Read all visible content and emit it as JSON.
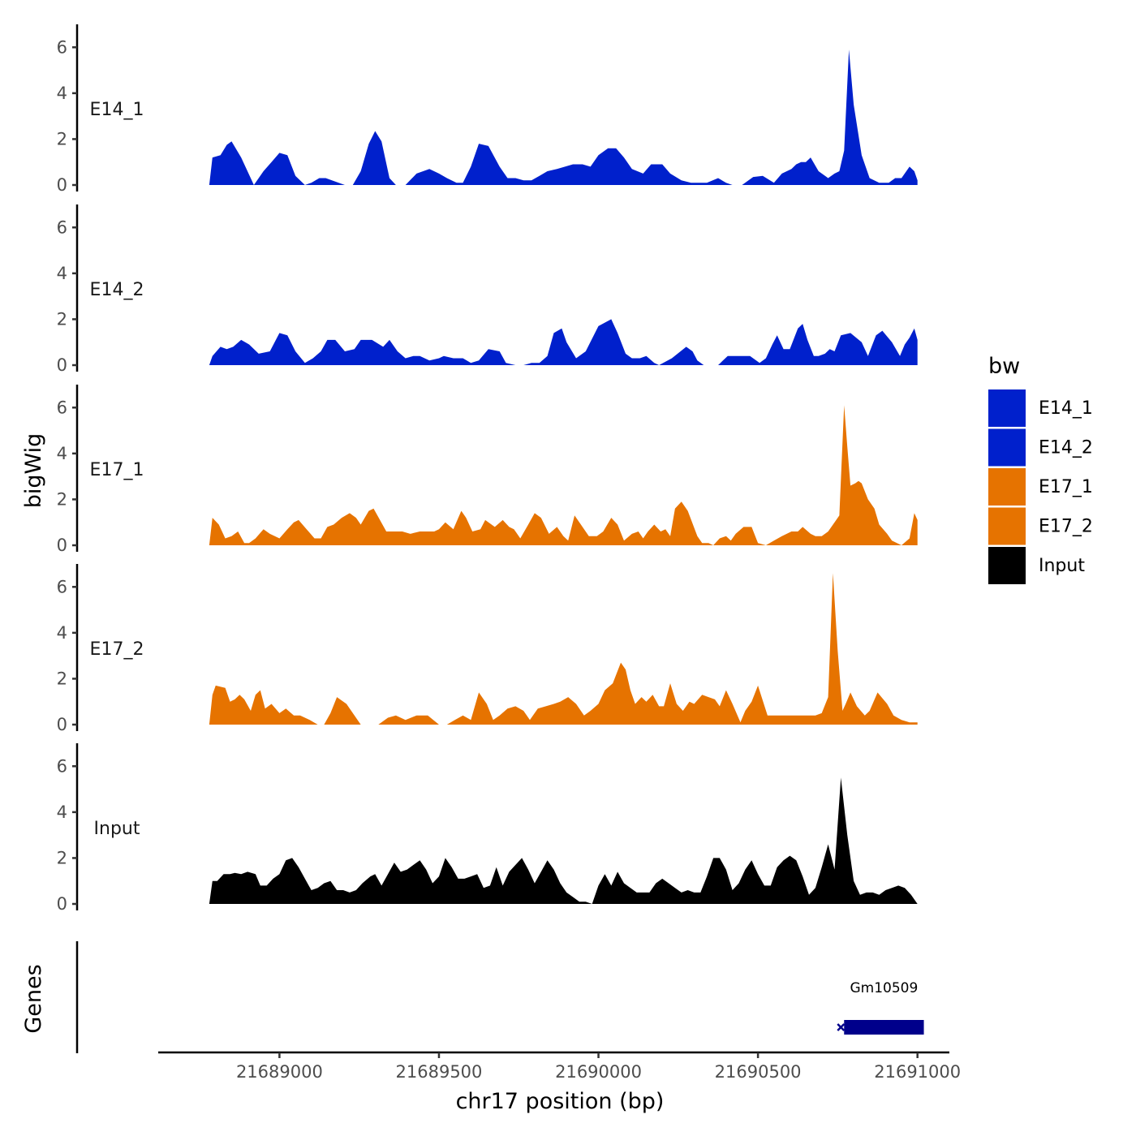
{
  "chart_data": {
    "type": "area",
    "title": "",
    "xlabel": "chr17 position (bp)",
    "ylabel": "bigWig",
    "genes_ylabel": "Genes",
    "xlim": [
      21688620,
      21691100
    ],
    "ylim": [
      0,
      7
    ],
    "x_ticks": [
      21689000,
      21689500,
      21690000,
      21690500,
      21691000
    ],
    "x_tick_labels": [
      "21689000",
      "21689500",
      "21690000",
      "21690500",
      "21691000"
    ],
    "y_ticks": [
      0,
      2,
      4,
      6
    ],
    "y_tick_labels": [
      "0",
      "2",
      "4",
      "6"
    ],
    "legend": {
      "title": "bw",
      "position": "right",
      "entries": [
        {
          "label": "E14_1",
          "color": "#0020CC"
        },
        {
          "label": "E14_2",
          "color": "#0020CC"
        },
        {
          "label": "E17_1",
          "color": "#E67300"
        },
        {
          "label": "E17_2",
          "color": "#E67300"
        },
        {
          "label": "Input",
          "color": "#000000"
        }
      ]
    },
    "series": [
      {
        "name": "E14_1",
        "color": "#0020CC",
        "x": [
          21688780,
          21688790,
          21688815,
          21688835,
          21688850,
          21688880,
          21688920,
          21688950,
          21688975,
          21689000,
          21689025,
          21689050,
          21689080,
          21689100,
          21689125,
          21689145,
          21689175,
          21689205,
          21689230,
          21689255,
          21689280,
          21689300,
          21689320,
          21689345,
          21689365,
          21689395,
          21689430,
          21689470,
          21689500,
          21689525,
          21689555,
          21689575,
          21689600,
          21689625,
          21689655,
          21689690,
          21689715,
          21689740,
          21689765,
          21689790,
          21689815,
          21689840,
          21689870,
          21689895,
          21689920,
          21689950,
          21689975,
          21690000,
          21690030,
          21690055,
          21690080,
          21690105,
          21690140,
          21690165,
          21690200,
          21690225,
          21690260,
          21690290,
          21690340,
          21690375,
          21690400,
          21690420,
          21690450,
          21690485,
          21690515,
          21690550,
          21690575,
          21690605,
          21690620,
          21690635,
          21690650,
          21690665,
          21690690,
          21690720,
          21690740,
          21690755,
          21690770,
          21690785,
          21690800,
          21690825,
          21690850,
          21690880,
          21690910,
          21690930,
          21690950,
          21690975,
          21690990,
          21691000
        ],
        "y": [
          0,
          1.2,
          1.3,
          1.75,
          1.9,
          1.2,
          0,
          0.6,
          1.0,
          1.4,
          1.3,
          0.4,
          0,
          0.1,
          0.3,
          0.3,
          0.15,
          0,
          0,
          0.6,
          1.8,
          2.35,
          1.9,
          0.3,
          0,
          0,
          0.5,
          0.7,
          0.5,
          0.3,
          0.1,
          0.1,
          0.8,
          1.8,
          1.7,
          0.8,
          0.3,
          0.3,
          0.2,
          0.2,
          0.4,
          0.6,
          0.7,
          0.8,
          0.9,
          0.9,
          0.8,
          1.3,
          1.6,
          1.6,
          1.2,
          0.7,
          0.5,
          0.9,
          0.9,
          0.5,
          0.2,
          0.1,
          0.1,
          0.3,
          0.1,
          0,
          0,
          0.35,
          0.4,
          0.1,
          0.5,
          0.7,
          0.9,
          1.0,
          1.0,
          1.2,
          0.6,
          0.3,
          0.5,
          0.6,
          1.5,
          5.9,
          3.5,
          1.3,
          0.3,
          0.1,
          0.1,
          0.3,
          0.3,
          0.8,
          0.6,
          0.2
        ]
      },
      {
        "name": "E14_2",
        "color": "#0020CC",
        "x": [
          21688780,
          21688790,
          21688815,
          21688835,
          21688855,
          21688880,
          21688905,
          21688935,
          21688970,
          21689000,
          21689025,
          21689050,
          21689080,
          21689105,
          21689130,
          21689150,
          21689175,
          21689205,
          21689235,
          21689255,
          21689290,
          21689325,
          21689345,
          21689370,
          21689395,
          21689420,
          21689440,
          21689470,
          21689500,
          21689515,
          21689545,
          21689575,
          21689600,
          21689625,
          21689655,
          21689690,
          21689710,
          21689740,
          21689765,
          21689790,
          21689815,
          21689840,
          21689860,
          21689885,
          21689900,
          21689930,
          21689960,
          21690000,
          21690040,
          21690060,
          21690085,
          21690105,
          21690130,
          21690150,
          21690175,
          21690190,
          21690230,
          21690275,
          21690295,
          21690310,
          21690330,
          21690355,
          21690375,
          21690405,
          21690430,
          21690455,
          21690475,
          21690505,
          21690525,
          21690545,
          21690560,
          21690580,
          21690600,
          21690625,
          21690640,
          21690655,
          21690675,
          21690690,
          21690710,
          21690725,
          21690740,
          21690760,
          21690790,
          21690825,
          21690845,
          21690870,
          21690890,
          21690920,
          21690945,
          21690960,
          21690975,
          21690990,
          21691000
        ],
        "y": [
          0,
          0.4,
          0.8,
          0.7,
          0.8,
          1.1,
          0.9,
          0.5,
          0.6,
          1.4,
          1.3,
          0.6,
          0.1,
          0.3,
          0.6,
          1.1,
          1.1,
          0.6,
          0.7,
          1.1,
          1.1,
          0.8,
          1.1,
          0.6,
          0.3,
          0.4,
          0.4,
          0.2,
          0.3,
          0.4,
          0.3,
          0.3,
          0.1,
          0.2,
          0.7,
          0.6,
          0.1,
          0,
          0,
          0.1,
          0.1,
          0.4,
          1.4,
          1.6,
          1.0,
          0.3,
          0.6,
          1.7,
          2.0,
          1.4,
          0.5,
          0.3,
          0.3,
          0.4,
          0.1,
          0,
          0.3,
          0.8,
          0.6,
          0.2,
          0,
          0,
          0,
          0.4,
          0.4,
          0.4,
          0.4,
          0.1,
          0.3,
          0.9,
          1.3,
          0.7,
          0.7,
          1.6,
          1.8,
          1.1,
          0.4,
          0.4,
          0.5,
          0.7,
          0.6,
          1.3,
          1.4,
          1.0,
          0.4,
          1.3,
          1.5,
          1.0,
          0.4,
          0.9,
          1.2,
          1.6,
          1.1
        ]
      },
      {
        "name": "E17_1",
        "color": "#E67300",
        "x": [
          21688780,
          21688790,
          21688810,
          21688830,
          21688850,
          21688870,
          21688890,
          21688905,
          21688925,
          21688950,
          21688970,
          21689000,
          21689025,
          21689045,
          21689060,
          21689085,
          21689110,
          21689130,
          21689150,
          21689170,
          21689195,
          21689220,
          21689240,
          21689255,
          21689280,
          21689295,
          21689335,
          21689360,
          21689385,
          21689410,
          21689440,
          21689460,
          21689485,
          21689500,
          21689520,
          21689545,
          21689570,
          21689585,
          21689605,
          21689630,
          21689645,
          21689675,
          21689700,
          21689720,
          21689735,
          21689755,
          21689780,
          21689800,
          21689820,
          21689845,
          21689870,
          21689890,
          21689905,
          21689925,
          21689945,
          21689970,
          21689995,
          21690015,
          21690040,
          21690060,
          21690080,
          21690105,
          21690125,
          21690140,
          21690155,
          21690175,
          21690195,
          21690210,
          21690225,
          21690240,
          21690260,
          21690280,
          21690310,
          21690325,
          21690345,
          21690360,
          21690380,
          21690400,
          21690415,
          21690430,
          21690455,
          21690480,
          21690500,
          21690525,
          21690550,
          21690575,
          21690605,
          21690625,
          21690640,
          21690665,
          21690680,
          21690700,
          21690720,
          21690740,
          21690755,
          21690770,
          21690780,
          21690790,
          21690805,
          21690815,
          21690825,
          21690845,
          21690865,
          21690880,
          21690905,
          21690920,
          21690950,
          21690975,
          21690990,
          21691000
        ],
        "y": [
          0,
          1.2,
          0.9,
          0.3,
          0.4,
          0.6,
          0.1,
          0.1,
          0.3,
          0.7,
          0.5,
          0.3,
          0.7,
          1.0,
          1.1,
          0.7,
          0.3,
          0.3,
          0.8,
          0.9,
          1.2,
          1.4,
          1.2,
          0.9,
          1.5,
          1.6,
          0.6,
          0.6,
          0.6,
          0.5,
          0.6,
          0.6,
          0.6,
          0.7,
          1.0,
          0.7,
          1.5,
          1.2,
          0.6,
          0.7,
          1.1,
          0.8,
          1.1,
          0.8,
          0.7,
          0.3,
          0.9,
          1.4,
          1.2,
          0.5,
          0.8,
          0.4,
          0.2,
          1.3,
          0.9,
          0.4,
          0.4,
          0.6,
          1.2,
          0.9,
          0.2,
          0.5,
          0.6,
          0.3,
          0.6,
          0.9,
          0.6,
          0.7,
          0.4,
          1.6,
          1.9,
          1.5,
          0.4,
          0.1,
          0.1,
          0,
          0.3,
          0.4,
          0.2,
          0.5,
          0.8,
          0.8,
          0.1,
          0,
          0.2,
          0.4,
          0.6,
          0.6,
          0.8,
          0.5,
          0.4,
          0.4,
          0.6,
          1.0,
          1.3,
          6.1,
          4.3,
          2.6,
          2.7,
          2.8,
          2.7,
          2.0,
          1.6,
          0.9,
          0.5,
          0.2,
          0,
          0.3,
          1.4,
          1.1
        ]
      },
      {
        "name": "E17_2",
        "color": "#E67300",
        "x": [
          21688780,
          21688790,
          21688800,
          21688830,
          21688845,
          21688860,
          21688875,
          21688890,
          21688910,
          21688925,
          21688940,
          21688955,
          21688975,
          21689000,
          21689020,
          21689045,
          21689065,
          21689095,
          21689120,
          21689140,
          21689160,
          21689180,
          21689210,
          21689255,
          21689285,
          21689310,
          21689340,
          21689365,
          21689395,
          21689430,
          21689465,
          21689500,
          21689525,
          21689550,
          21689575,
          21689600,
          21689625,
          21689650,
          21689670,
          21689690,
          21689715,
          21689740,
          21689765,
          21689785,
          21689810,
          21689835,
          21689860,
          21689880,
          21689905,
          21689930,
          21689955,
          21689975,
          21690000,
          21690020,
          21690045,
          21690070,
          21690085,
          21690100,
          21690115,
          21690135,
          21690150,
          21690170,
          21690190,
          21690205,
          21690225,
          21690245,
          21690265,
          21690285,
          21690300,
          21690325,
          21690345,
          21690365,
          21690380,
          21690400,
          21690420,
          21690445,
          21690460,
          21690480,
          21690500,
          21690530,
          21690550,
          21690570,
          21690600,
          21690620,
          21690650,
          21690680,
          21690700,
          21690720,
          21690735,
          21690750,
          21690765,
          21690775,
          21690790,
          21690810,
          21690835,
          21690850,
          21690875,
          21690905,
          21690925,
          21690950,
          21690975,
          21690990,
          21691000
        ],
        "y": [
          0,
          1.3,
          1.7,
          1.6,
          1.0,
          1.1,
          1.3,
          1.1,
          0.6,
          1.3,
          1.5,
          0.7,
          0.9,
          0.5,
          0.7,
          0.4,
          0.4,
          0.2,
          0,
          0,
          0.5,
          1.2,
          0.9,
          0,
          0,
          0,
          0.3,
          0.4,
          0.2,
          0.4,
          0.4,
          0,
          0,
          0.2,
          0.4,
          0.2,
          1.4,
          0.9,
          0.2,
          0.4,
          0.7,
          0.8,
          0.6,
          0.2,
          0.7,
          0.8,
          0.9,
          1.0,
          1.2,
          0.9,
          0.4,
          0.6,
          0.9,
          1.5,
          1.8,
          2.7,
          2.4,
          1.5,
          0.9,
          1.2,
          1.0,
          1.3,
          0.8,
          0.8,
          1.8,
          0.9,
          0.6,
          1.0,
          0.9,
          1.3,
          1.2,
          1.1,
          0.8,
          1.5,
          0.9,
          0.1,
          0.6,
          1.0,
          1.7,
          0.4,
          0.4,
          0.4,
          0.4,
          0.4,
          0.4,
          0.4,
          0.5,
          1.2,
          6.6,
          3.2,
          0.6,
          0.9,
          1.4,
          0.8,
          0.4,
          0.6,
          1.4,
          0.9,
          0.4,
          0.2,
          0.1,
          0.1,
          0.1
        ]
      },
      {
        "name": "Input",
        "color": "#000000",
        "x": [
          21688780,
          21688790,
          21688805,
          21688825,
          21688845,
          21688860,
          21688880,
          21688900,
          21688925,
          21688940,
          21688960,
          21688980,
          21689000,
          21689020,
          21689040,
          21689060,
          21689080,
          21689100,
          21689120,
          21689140,
          21689160,
          21689180,
          21689200,
          21689220,
          21689240,
          21689260,
          21689285,
          21689300,
          21689320,
          21689340,
          21689360,
          21689380,
          21689400,
          21689420,
          21689440,
          21689460,
          21689480,
          21689500,
          21689520,
          21689540,
          21689560,
          21689580,
          21689600,
          21689620,
          21689640,
          21689660,
          21689680,
          21689700,
          21689720,
          21689740,
          21689760,
          21689780,
          21689800,
          21689820,
          21689840,
          21689860,
          21689880,
          21689900,
          21689920,
          21689940,
          21689960,
          21689980,
          21690000,
          21690020,
          21690040,
          21690060,
          21690080,
          21690100,
          21690120,
          21690140,
          21690160,
          21690180,
          21690200,
          21690220,
          21690240,
          21690260,
          21690280,
          21690300,
          21690320,
          21690340,
          21690360,
          21690380,
          21690400,
          21690420,
          21690440,
          21690460,
          21690480,
          21690500,
          21690520,
          21690540,
          21690560,
          21690580,
          21690600,
          21690620,
          21690640,
          21690660,
          21690680,
          21690700,
          21690720,
          21690740,
          21690760,
          21690780,
          21690800,
          21690820,
          21690840,
          21690860,
          21690880,
          21690900,
          21690920,
          21690940,
          21690960,
          21690980,
          21691000
        ],
        "y": [
          0,
          1.0,
          1.0,
          1.3,
          1.3,
          1.35,
          1.3,
          1.4,
          1.3,
          0.8,
          0.8,
          1.1,
          1.3,
          1.9,
          2.0,
          1.6,
          1.1,
          0.6,
          0.7,
          0.9,
          1.0,
          0.6,
          0.6,
          0.5,
          0.6,
          0.9,
          1.2,
          1.3,
          0.8,
          1.3,
          1.8,
          1.4,
          1.5,
          1.7,
          1.9,
          1.5,
          0.9,
          1.2,
          2.0,
          1.6,
          1.1,
          1.1,
          1.2,
          1.3,
          0.7,
          0.8,
          1.6,
          0.8,
          1.4,
          1.7,
          2.0,
          1.5,
          0.9,
          1.4,
          1.9,
          1.5,
          0.9,
          0.5,
          0.3,
          0.1,
          0.1,
          0,
          0.8,
          1.3,
          0.8,
          1.4,
          0.9,
          0.7,
          0.5,
          0.5,
          0.5,
          0.9,
          1.1,
          0.9,
          0.7,
          0.5,
          0.6,
          0.5,
          0.5,
          1.2,
          2.0,
          2.0,
          1.5,
          0.6,
          0.9,
          1.5,
          1.9,
          1.3,
          0.8,
          0.8,
          1.6,
          1.9,
          2.1,
          1.9,
          1.2,
          0.4,
          0.7,
          1.6,
          2.6,
          1.5,
          5.5,
          3.0,
          1.0,
          0.4,
          0.5,
          0.5,
          0.4,
          0.6,
          0.7,
          0.8,
          0.7,
          0.4,
          0
        ]
      }
    ],
    "genes": [
      {
        "name": "Gm10509",
        "start": 21690770,
        "end": 21691020,
        "strand": "-",
        "color": "#00008B"
      }
    ]
  }
}
